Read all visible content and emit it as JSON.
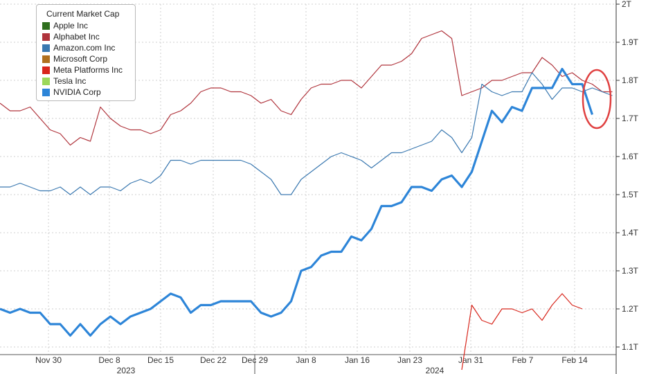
{
  "chart_data": {
    "type": "line",
    "legend": {
      "title": "Current Market Cap",
      "placement": "top-left",
      "items": [
        {
          "name": "Apple Inc",
          "color": "#2f6f1e"
        },
        {
          "name": "Alphabet Inc",
          "color": "#b0343c"
        },
        {
          "name": "Amazon.com Inc",
          "color": "#3a78b0"
        },
        {
          "name": "Microsoft Corp",
          "color": "#b0701e"
        },
        {
          "name": "Meta Platforms Inc",
          "color": "#d8261c"
        },
        {
          "name": "Tesla Inc",
          "color": "#9cd85a"
        },
        {
          "name": "NVIDIA Corp",
          "color": "#2d85d8"
        }
      ]
    },
    "x_ticks": [
      "Nov 30",
      "Dec 8",
      "Dec 15",
      "Dec 22",
      "Dec 29",
      "Jan 8",
      "Jan 16",
      "Jan 23",
      "Jan 31",
      "Feb 7",
      "Feb 14"
    ],
    "year_labels": [
      "2023",
      "2024"
    ],
    "y_ticks": [
      "1.1T",
      "1.2T",
      "1.3T",
      "1.4T",
      "1.5T",
      "1.6T",
      "1.7T",
      "1.8T",
      "1.9T",
      "2T"
    ],
    "ylim": [
      1.08,
      2.0
    ],
    "grid": true,
    "annotation": "red ellipse highlighting the latest NVIDIA decline",
    "series": [
      {
        "name": "Alphabet Inc",
        "color": "#b0343c",
        "values": [
          1.74,
          1.72,
          1.72,
          1.73,
          1.7,
          1.67,
          1.66,
          1.63,
          1.65,
          1.64,
          1.73,
          1.7,
          1.68,
          1.67,
          1.67,
          1.66,
          1.67,
          1.71,
          1.72,
          1.74,
          1.77,
          1.78,
          1.78,
          1.77,
          1.77,
          1.76,
          1.74,
          1.75,
          1.72,
          1.71,
          1.75,
          1.78,
          1.79,
          1.79,
          1.8,
          1.8,
          1.78,
          1.81,
          1.84,
          1.84,
          1.85,
          1.87,
          1.91,
          1.92,
          1.93,
          1.91,
          1.76,
          1.77,
          1.78,
          1.8,
          1.8,
          1.81,
          1.82,
          1.82,
          1.86,
          1.84,
          1.81,
          1.82,
          1.8,
          1.79,
          1.77,
          1.77
        ]
      },
      {
        "name": "Amazon.com Inc",
        "color": "#3a78b0",
        "values": [
          1.52,
          1.52,
          1.53,
          1.52,
          1.51,
          1.51,
          1.52,
          1.5,
          1.52,
          1.5,
          1.52,
          1.52,
          1.51,
          1.53,
          1.54,
          1.53,
          1.55,
          1.59,
          1.59,
          1.58,
          1.59,
          1.59,
          1.59,
          1.59,
          1.59,
          1.58,
          1.56,
          1.54,
          1.5,
          1.5,
          1.54,
          1.56,
          1.58,
          1.6,
          1.61,
          1.6,
          1.59,
          1.57,
          1.59,
          1.61,
          1.61,
          1.62,
          1.63,
          1.64,
          1.67,
          1.65,
          1.61,
          1.65,
          1.79,
          1.77,
          1.76,
          1.77,
          1.77,
          1.82,
          1.79,
          1.75,
          1.78,
          1.78,
          1.77,
          1.78,
          1.77,
          1.76
        ]
      },
      {
        "name": "NVIDIA Corp",
        "color": "#2d85d8",
        "values": [
          1.2,
          1.19,
          1.2,
          1.19,
          1.19,
          1.16,
          1.16,
          1.13,
          1.16,
          1.13,
          1.16,
          1.18,
          1.16,
          1.18,
          1.19,
          1.2,
          1.22,
          1.24,
          1.23,
          1.19,
          1.21,
          1.21,
          1.22,
          1.22,
          1.22,
          1.22,
          1.19,
          1.18,
          1.19,
          1.22,
          1.3,
          1.31,
          1.34,
          1.35,
          1.35,
          1.39,
          1.38,
          1.41,
          1.47,
          1.47,
          1.48,
          1.52,
          1.52,
          1.51,
          1.54,
          1.55,
          1.52,
          1.56,
          1.64,
          1.72,
          1.69,
          1.73,
          1.72,
          1.78,
          1.78,
          1.78,
          1.83,
          1.79,
          1.79,
          1.71
        ]
      },
      {
        "name": "Meta Platforms Inc",
        "color": "#d8261c",
        "x_start": 46,
        "values": [
          1.04,
          1.21,
          1.17,
          1.16,
          1.2,
          1.2,
          1.19,
          1.2,
          1.17,
          1.21,
          1.24,
          1.21,
          1.2
        ]
      }
    ]
  }
}
